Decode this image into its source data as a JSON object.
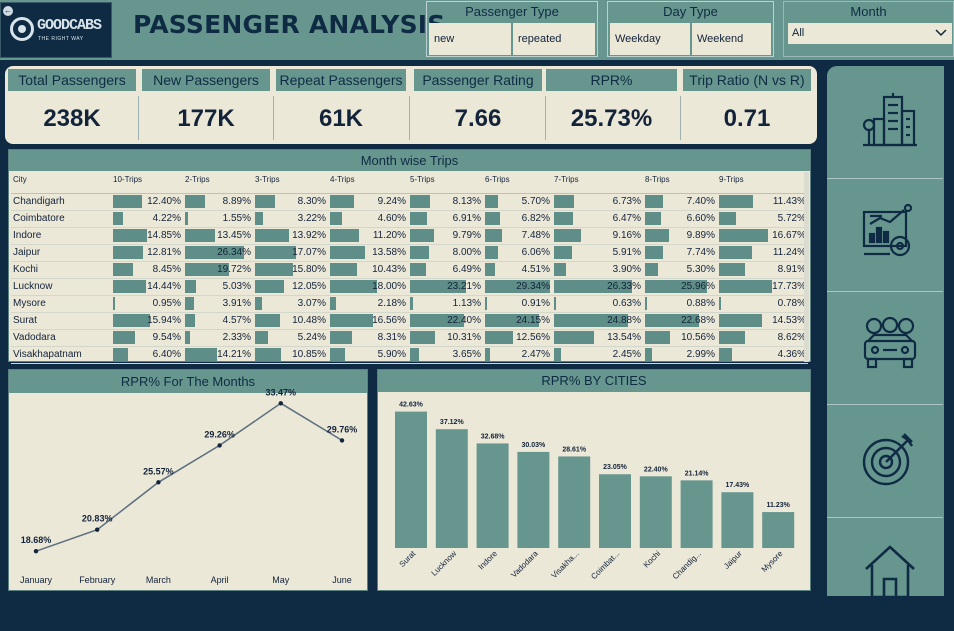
{
  "header": {
    "logo_name": "GOODCABS",
    "logo_tagline": "THE RIGHT WAY",
    "title": "PASSENGER ANALYSIS"
  },
  "filters": {
    "passenger_type": {
      "title": "Passenger Type",
      "options": [
        "new",
        "repeated"
      ]
    },
    "day_type": {
      "title": "Day Type",
      "options": [
        "Weekday",
        "Weekend"
      ]
    },
    "month": {
      "title": "Month",
      "selected": "All"
    }
  },
  "kpis": [
    {
      "label": "Total Passengers",
      "value": "238K"
    },
    {
      "label": "New Passengers",
      "value": "177K"
    },
    {
      "label": "Repeat Passengers",
      "value": "61K"
    },
    {
      "label": "Passenger Rating",
      "value": "7.66"
    },
    {
      "label": "RPR%",
      "value": "25.73%"
    },
    {
      "label": "Trip Ratio (N vs R)",
      "value": "0.71"
    }
  ],
  "month_wise_trips": {
    "title": "Month wise Trips",
    "columns": [
      "City",
      "10-Trips",
      "2-Trips",
      "3-Trips",
      "4-Trips",
      "5-Trips",
      "6-Trips",
      "7-Trips",
      "8-Trips",
      "9-Trips"
    ],
    "rows": [
      {
        "city": "Chandigarh",
        "values": [
          "12.40%",
          "8.89%",
          "8.30%",
          "9.24%",
          "8.13%",
          "5.70%",
          "6.73%",
          "7.40%",
          "11.43%"
        ]
      },
      {
        "city": "Coimbatore",
        "values": [
          "4.22%",
          "1.55%",
          "3.22%",
          "4.60%",
          "6.91%",
          "6.82%",
          "6.47%",
          "6.60%",
          "5.72%"
        ]
      },
      {
        "city": "Indore",
        "values": [
          "14.85%",
          "13.45%",
          "13.92%",
          "11.20%",
          "9.79%",
          "7.48%",
          "9.16%",
          "9.89%",
          "16.67%"
        ]
      },
      {
        "city": "Jaipur",
        "values": [
          "12.81%",
          "26.34%",
          "17.07%",
          "13.58%",
          "8.00%",
          "6.06%",
          "5.91%",
          "7.74%",
          "11.24%"
        ]
      },
      {
        "city": "Kochi",
        "values": [
          "8.45%",
          "19.72%",
          "15.80%",
          "10.43%",
          "6.49%",
          "4.51%",
          "3.90%",
          "5.30%",
          "8.91%"
        ]
      },
      {
        "city": "Lucknow",
        "values": [
          "14.44%",
          "5.03%",
          "12.05%",
          "18.00%",
          "23.21%",
          "29.34%",
          "26.33%",
          "25.96%",
          "17.73%"
        ]
      },
      {
        "city": "Mysore",
        "values": [
          "0.95%",
          "3.91%",
          "3.07%",
          "2.18%",
          "1.13%",
          "0.91%",
          "0.63%",
          "0.88%",
          "0.78%"
        ]
      },
      {
        "city": "Surat",
        "values": [
          "15.94%",
          "4.57%",
          "10.48%",
          "16.56%",
          "22.40%",
          "24.15%",
          "24.88%",
          "22.68%",
          "14.53%"
        ]
      },
      {
        "city": "Vadodara",
        "values": [
          "9.54%",
          "2.33%",
          "5.24%",
          "8.31%",
          "10.31%",
          "12.56%",
          "13.54%",
          "10.56%",
          "8.62%"
        ]
      },
      {
        "city": "Visakhapatnam",
        "values": [
          "6.40%",
          "14.21%",
          "10.85%",
          "5.90%",
          "3.65%",
          "2.47%",
          "2.45%",
          "2.99%",
          "4.36%"
        ]
      }
    ]
  },
  "chart_data": [
    {
      "type": "line",
      "title": "RPR% For The Months",
      "categories": [
        "January",
        "February",
        "March",
        "April",
        "May",
        "June"
      ],
      "values": [
        18.68,
        20.83,
        25.57,
        29.26,
        33.47,
        29.76
      ],
      "labels": [
        "18.68%",
        "20.83%",
        "25.57%",
        "29.26%",
        "33.47%",
        "29.76%"
      ],
      "color": "#1e3a54"
    },
    {
      "type": "bar",
      "title": "RPR% BY CITIES",
      "categories": [
        "Surat",
        "Lucknow",
        "Indore",
        "Vadodara",
        "Visakha...",
        "Coimbat...",
        "Kochi",
        "Chandig...",
        "Jaipur",
        "Mysore"
      ],
      "values": [
        42.63,
        37.12,
        32.68,
        30.03,
        28.61,
        23.05,
        22.4,
        21.14,
        17.43,
        11.23
      ],
      "labels": [
        "42.63%",
        "37.12%",
        "32.68%",
        "30.03%",
        "28.61%",
        "23.05%",
        "22.40%",
        "21.14%",
        "17.43%",
        "11.23%"
      ],
      "color": "#67968f"
    }
  ],
  "nav": [
    "city-buildings-icon",
    "analytics-dashboard-icon",
    "passengers-car-icon",
    "target-icon",
    "home-icon"
  ],
  "colors": {
    "background": "#0f2b44",
    "accent": "#67968f",
    "panel": "#ece8d8",
    "bar": "#5f8d88"
  }
}
